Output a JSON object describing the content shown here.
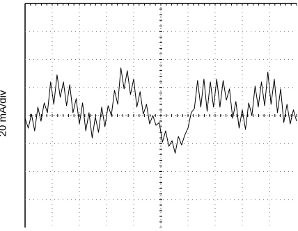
{
  "chart_data": {
    "type": "line",
    "title": "",
    "xlabel": "",
    "ylabel": "20 mA/div",
    "divisions": {
      "x": 10,
      "y": 8
    },
    "grid": true,
    "series": [
      {
        "values_div": [
          -0.1,
          -0.45,
          0.05,
          -0.55,
          0.3,
          -0.2,
          0.45,
          0.1,
          1.2,
          0.4,
          1.45,
          0.65,
          1.2,
          0.35,
          1.1,
          0.1,
          0.6,
          -0.3,
          0.45,
          -0.55,
          0.1,
          -0.8,
          -0.05,
          -0.6,
          0.3,
          -0.4,
          0.35,
          0.0,
          0.9,
          0.4,
          1.7,
          0.95,
          1.6,
          0.75,
          1.3,
          0.3,
          0.85,
          0.05,
          0.4,
          -0.3,
          0.0,
          -0.35,
          -0.25,
          -0.95,
          -0.55,
          -1.1,
          -0.9,
          -1.35,
          -0.75,
          -1.05,
          -0.7,
          -0.45,
          0.1,
          0.25,
          1.25,
          0.3,
          1.3,
          0.15,
          1.2,
          0.3,
          1.3,
          0.3,
          1.25,
          0.55,
          0.95,
          -0.1,
          0.5,
          -0.45,
          0.2,
          -0.5,
          0.45,
          0.0,
          1.05,
          0.3,
          1.2,
          0.35,
          1.55,
          0.4,
          1.3,
          0.1,
          0.95,
          -0.25,
          0.4,
          -0.3,
          0.2,
          -0.2
        ]
      }
    ]
  }
}
